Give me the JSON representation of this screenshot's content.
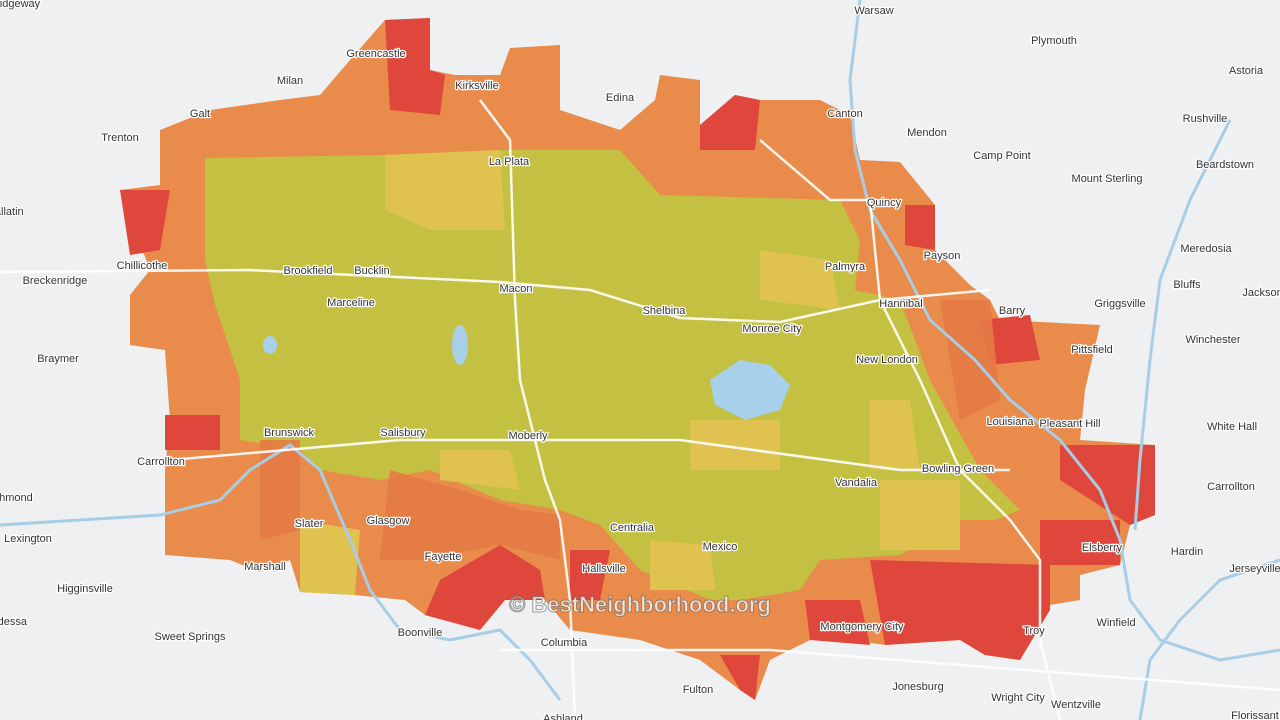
{
  "watermark": "© BestNeighborhood.org",
  "places": [
    "Ridgeway",
    "Warsaw",
    "Plymouth",
    "Astoria",
    "Greencastle",
    "Milan",
    "Kirksville",
    "Edina",
    "Canton",
    "Rushville",
    "Galt",
    "Trenton",
    "Mendon",
    "Camp Point",
    "Beardstown",
    "La Plata",
    "Mount Sterling",
    "Quincy",
    "Gallatin",
    "Meredosia",
    "Payson",
    "Chillicothe",
    "Brookfield",
    "Bucklin",
    "Palmyra",
    "Breckenridge",
    "Bluffs",
    "Macon",
    "Hannibal",
    "Griggsville",
    "Barry",
    "Marceline",
    "Shelbina",
    "Monroe City",
    "Winchester",
    "Pittsfield",
    "Braymer",
    "New London",
    "Louisiana",
    "Pleasant Hill",
    "White Hall",
    "Brunswick",
    "Salisbury",
    "Moberly",
    "Carrollton",
    "Bowling Green",
    "Carrollton",
    "Vandalia",
    "Richmond",
    "Slater",
    "Glasgow",
    "Centralia",
    "Lexington",
    "Mexico",
    "Fayette",
    "Hardin",
    "Elsberry",
    "Jerseyville",
    "Marshall",
    "Hallsville",
    "Higginsville",
    "Winfield",
    "Montgomery City",
    "Troy",
    "Boonville",
    "Columbia",
    "Sweet Springs",
    "Odessa",
    "Fulton",
    "Jonesburg",
    "Wright City",
    "Wentzville",
    "Florissant",
    "Ashland",
    "Jacksonville"
  ]
}
